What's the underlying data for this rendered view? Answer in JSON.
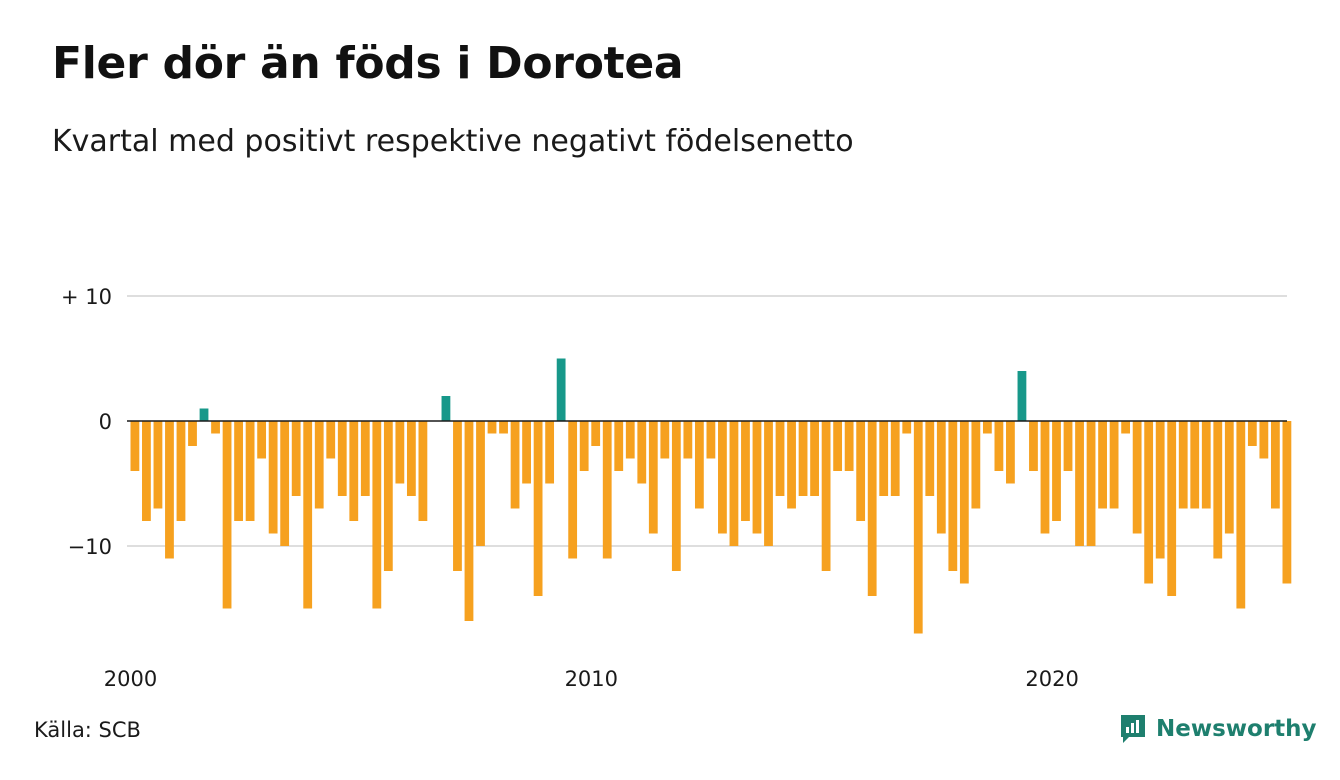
{
  "title": "Fler dör än föds i Dorotea",
  "subtitle": "Kvartal med positivt respektive negativt födelsenetto",
  "source": "Källa: SCB",
  "brand": {
    "name": "Newsworthy",
    "icon": "newsworthy-logo-icon"
  },
  "colors": {
    "positive": "#17988a",
    "negative": "#f6a11f",
    "grid": "#dedede",
    "baseline": "#1a1a1a"
  },
  "chart_data": {
    "type": "bar",
    "title": "Fler dör än föds i Dorotea",
    "subtitle": "Kvartal med positivt respektive negativt födelsenetto",
    "x_start": {
      "year": 2000,
      "quarter": 1
    },
    "x_ticks": [
      "2000",
      "2010",
      "2020"
    ],
    "y_ticks": [
      {
        "value": 10,
        "label": "+ 10"
      },
      {
        "value": 0,
        "label": "0"
      },
      {
        "value": -10,
        "label": "−10"
      }
    ],
    "ylim": [
      -18,
      11
    ],
    "grid": true,
    "values": [
      -4,
      -8,
      -7,
      -11,
      -8,
      -2,
      1,
      -1,
      -15,
      -8,
      -8,
      -3,
      -9,
      -10,
      -6,
      -15,
      -7,
      -3,
      -6,
      -8,
      -6,
      -15,
      -12,
      -5,
      -6,
      -8,
      0,
      2,
      -12,
      -16,
      -10,
      -1,
      -1,
      -7,
      -5,
      -14,
      -5,
      5,
      -11,
      -4,
      -2,
      -11,
      -4,
      -3,
      -5,
      -9,
      -3,
      -12,
      -3,
      -7,
      -3,
      -9,
      -10,
      -8,
      -9,
      -10,
      -6,
      -7,
      -6,
      -6,
      -12,
      -4,
      -4,
      -8,
      -14,
      -6,
      -6,
      -1,
      -17,
      -6,
      -9,
      -12,
      -13,
      -7,
      -1,
      -4,
      -5,
      4,
      -4,
      -9,
      -8,
      -4,
      -10,
      -10,
      -7,
      -7,
      -1,
      -9,
      -13,
      -11,
      -14,
      -7,
      -7,
      -7,
      -11,
      -9,
      -15,
      -2,
      -3,
      -7,
      -13
    ]
  }
}
